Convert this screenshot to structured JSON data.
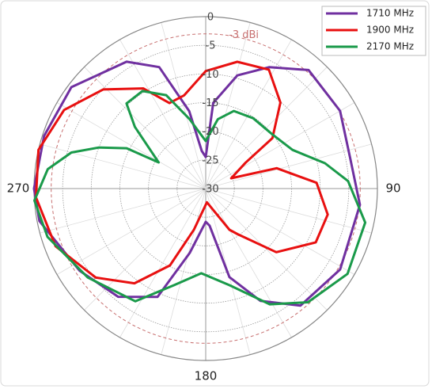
{
  "chart_data": {
    "type": "polar",
    "rlim": [
      -30,
      0
    ],
    "rticks": [
      -30,
      -25,
      -20,
      -15,
      -10,
      -5,
      0
    ],
    "thetaticks": [
      90,
      180,
      270
    ],
    "reference_ring": {
      "value": -3,
      "label": "-3 dBi",
      "color": "#c87070"
    },
    "legend": "upper right",
    "series": [
      {
        "name": "1710 MHz",
        "color": "#7030a0",
        "theta": [
          0,
          5,
          15.6,
          27.6,
          41,
          60,
          78,
          96,
          121,
          141,
          154,
          165,
          174,
          180,
          194,
          204,
          219,
          237,
          259,
          270,
          288,
          307,
          328,
          339,
          348,
          354
        ],
        "values": [
          -24.5,
          -15,
          -9.5,
          -6.1,
          -2.6,
          -2.9,
          -4.2,
          -2.9,
          -2.6,
          -3.7,
          -8.2,
          -14,
          -23.5,
          -24.2,
          -18.4,
          -9.3,
          -5.7,
          -3.7,
          -0.4,
          0,
          -0.3,
          -0.6,
          -3.9,
          -7.3,
          -16.2,
          -23.4
        ]
      },
      {
        "name": "1900 MHz",
        "color": "#e81010",
        "theta": [
          347,
          0,
          14,
          28,
          41,
          53,
          57,
          68,
          74,
          87,
          102,
          116,
          132,
          145,
          150,
          175,
          196,
          205,
          217,
          231,
          249,
          267,
          283,
          299,
          314,
          328,
          337
        ],
        "values": [
          -13.3,
          -9.5,
          -7.2,
          -6.5,
          -10.1,
          -15.4,
          -21.7,
          -25.2,
          -17.1,
          -10.6,
          -8.2,
          -8.6,
          -13.4,
          -20.3,
          -21.7,
          -27.6,
          -22.5,
          -15.2,
          -9.3,
          -5.3,
          -1.9,
          -0.3,
          0,
          -1.7,
          -5.1,
          -9.4,
          -13.8
        ]
      },
      {
        "name": "2170 MHz",
        "color": "#1a9a4a",
        "theta": [
          299,
          311,
          317,
          327,
          337,
          347,
          0,
          10,
          20,
          34,
          51,
          66,
          78,
          87,
          102,
          121,
          138,
          151,
          166,
          183,
          198,
          212,
          233,
          253,
          266,
          277,
          285,
          291,
          297
        ],
        "values": [
          -20.6,
          -13.6,
          -9.7,
          -9.7,
          -12.3,
          -17.6,
          -21.7,
          -17.7,
          -15.6,
          -15.2,
          -15,
          -13.4,
          -8.7,
          -5.1,
          -1.5,
          -1.1,
          -3.3,
          -6.9,
          -12.6,
          -15.2,
          -12.3,
          -6.8,
          -4.2,
          -1.1,
          0,
          -2.2,
          -5.7,
          -10,
          -14.5
        ]
      }
    ]
  }
}
